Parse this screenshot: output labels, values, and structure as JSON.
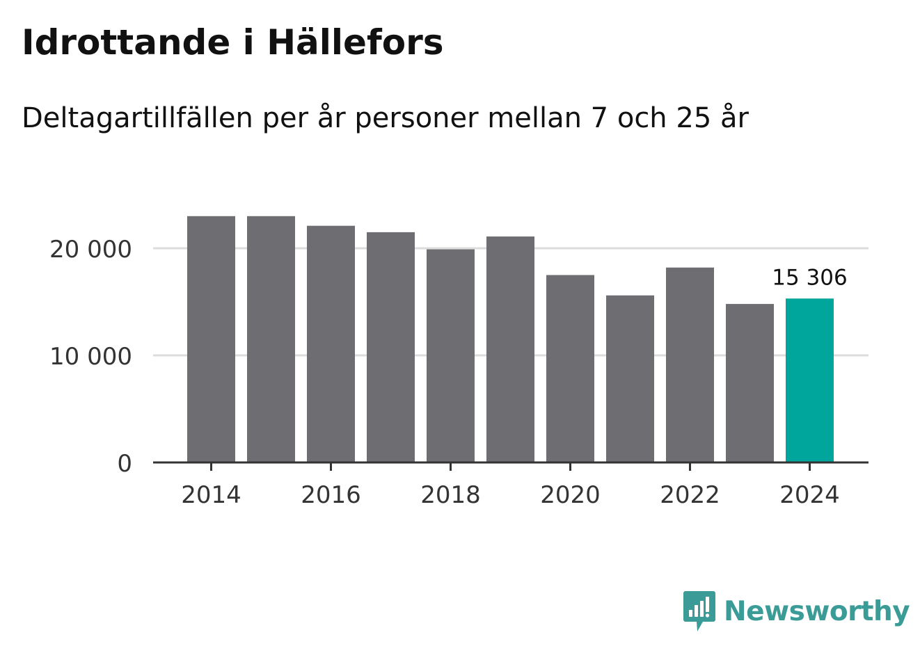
{
  "header": {
    "title": "Idrottande i Hällefors",
    "subtitle": "Deltagartillfällen per år personer mellan 7 och 25 år"
  },
  "colors": {
    "bar": "#6e6d72",
    "highlight": "#00a59b",
    "grid": "#dcdcdc",
    "axis": "#333333",
    "brand": "#3b9b96"
  },
  "chart_data": {
    "type": "bar",
    "title": "Idrottande i Hällefors",
    "subtitle": "Deltagartillfällen per år personer mellan 7 och 25 år",
    "xlabel": "",
    "ylabel": "",
    "categories": [
      "2014",
      "2015",
      "2016",
      "2017",
      "2018",
      "2019",
      "2020",
      "2021",
      "2022",
      "2023",
      "2024"
    ],
    "values": [
      23000,
      23000,
      22100,
      21500,
      19900,
      21100,
      17500,
      15600,
      18200,
      14800,
      15306
    ],
    "highlight_index": 10,
    "highlight_label": "15 306",
    "ylim": [
      0,
      25000
    ],
    "yticks": [
      0,
      10000,
      20000
    ],
    "ytick_labels": [
      "0",
      "10 000",
      "20 000"
    ],
    "xticks": [
      "2014",
      "2016",
      "2018",
      "2020",
      "2022",
      "2024"
    ],
    "grid": true
  },
  "brand": {
    "name": "Newsworthy",
    "icon": "newsworthy-logo-icon"
  }
}
